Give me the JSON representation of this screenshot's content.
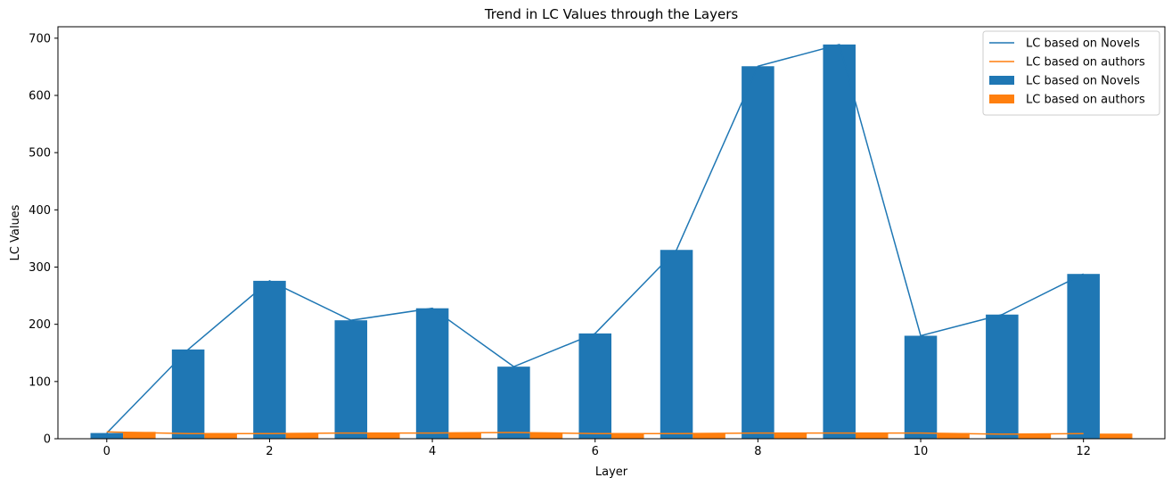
{
  "chart_data": {
    "type": "bar",
    "title": "Trend in LC Values through the Layers",
    "xlabel": "Layer",
    "ylabel": "LC Values",
    "xlim": [
      -0.6,
      13.0
    ],
    "ylim": [
      0,
      720
    ],
    "x_ticks": [
      0,
      2,
      4,
      6,
      8,
      10,
      12
    ],
    "y_ticks": [
      0,
      100,
      200,
      300,
      400,
      500,
      600,
      700
    ],
    "x": [
      0,
      1,
      2,
      3,
      4,
      5,
      6,
      7,
      8,
      9,
      10,
      11,
      12
    ],
    "bar_width": 0.4,
    "grid": false,
    "legend_position": "upper right",
    "series": [
      {
        "name": "LC based on Novels",
        "color": "#1f77b4",
        "values": [
          10,
          156,
          276,
          207,
          228,
          126,
          184,
          330,
          651,
          689,
          180,
          217,
          288
        ],
        "bar_offset": 0
      },
      {
        "name": "LC based on authors",
        "color": "#ff7f0e",
        "values": [
          12,
          9,
          9,
          10,
          10,
          11,
          9,
          9,
          10,
          10,
          10,
          8,
          9
        ],
        "bar_offset": 0.4
      }
    ],
    "legend": [
      {
        "label": "LC based on Novels",
        "kind": "line",
        "color": "#1f77b4"
      },
      {
        "label": "LC based on authors",
        "kind": "line",
        "color": "#ff7f0e"
      },
      {
        "label": "LC based on Novels",
        "kind": "bar",
        "color": "#1f77b4"
      },
      {
        "label": "LC based on authors",
        "kind": "bar",
        "color": "#ff7f0e"
      }
    ]
  }
}
